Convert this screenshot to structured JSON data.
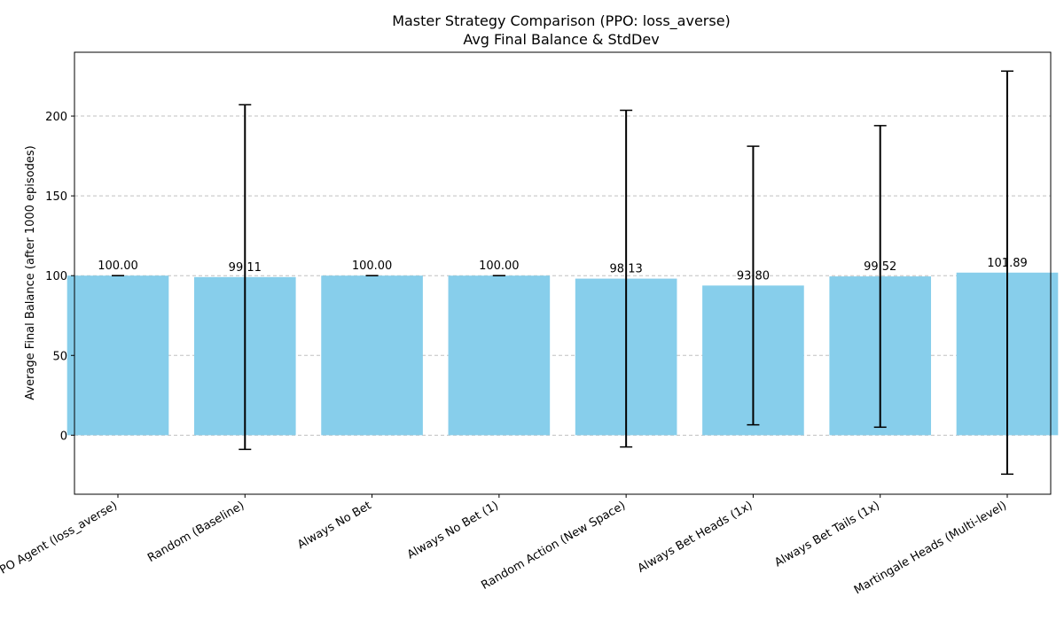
{
  "chart_data": {
    "type": "bar",
    "title": "Master Strategy Comparison (PPO: loss_averse)",
    "subtitle": "Avg Final Balance & StdDev",
    "xlabel": "",
    "ylabel": "Average Final Balance (after 1000 episodes)",
    "categories": [
      "PPO Agent (loss_averse)",
      "Random (Baseline)",
      "Always No Bet",
      "Always No Bet (1)",
      "Random Action (New Space)",
      "Always Bet Heads (1x)",
      "Always Bet Tails (1x)",
      "Martingale Heads (Multi-level)"
    ],
    "values": [
      100.0,
      99.11,
      100.0,
      100.0,
      98.13,
      93.8,
      99.52,
      101.89
    ],
    "value_labels": [
      "100.00",
      "99.11",
      "100.00",
      "100.00",
      "98.13",
      "93.80",
      "99.52",
      "101.89"
    ],
    "errors": [
      0,
      108,
      0,
      0,
      105.5,
      87.3,
      94.5,
      126.3
    ],
    "ylim": [
      -37,
      240
    ],
    "yticks": [
      0,
      50,
      100,
      150,
      200
    ],
    "ytick_labels": [
      "0",
      "50",
      "100",
      "150",
      "200"
    ],
    "grid": "y-dashed",
    "bar_color": "#87ceeb",
    "error_color": "#000000",
    "grid_color": "#c0c0c0"
  }
}
